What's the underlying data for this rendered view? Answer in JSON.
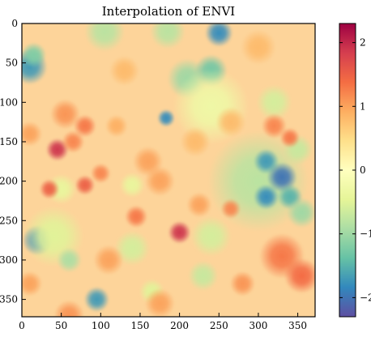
{
  "chart_data": {
    "type": "heatmap",
    "title": "Interpolation of ENVI",
    "xlabel": "",
    "ylabel": "",
    "xlim": [
      0,
      372
    ],
    "ylim": [
      372,
      0
    ],
    "x_ticks": [
      0,
      50,
      100,
      150,
      200,
      250,
      300,
      350
    ],
    "y_ticks": [
      0,
      50,
      100,
      150,
      200,
      250,
      300,
      350
    ],
    "colorbar": {
      "range": [
        -2.3,
        2.3
      ],
      "ticks": [
        -2,
        -1,
        0,
        1,
        2
      ],
      "colormap": "Spectral_r",
      "stops": [
        "#5e4fa2",
        "#3288bd",
        "#66c2a5",
        "#abdda4",
        "#e6f598",
        "#ffffbf",
        "#fee08b",
        "#fdae61",
        "#f46d43",
        "#d53e4f",
        "#9e0142"
      ]
    },
    "base_value": 0.45,
    "background_color": "#fdd49a",
    "blobs": [
      {
        "x": 10,
        "y": 55,
        "r": 14,
        "v": -1.7
      },
      {
        "x": 15,
        "y": 40,
        "r": 10,
        "v": -1.2
      },
      {
        "x": 105,
        "y": 10,
        "r": 16,
        "v": -0.8
      },
      {
        "x": 185,
        "y": 10,
        "r": 14,
        "v": -0.8
      },
      {
        "x": 250,
        "y": 12,
        "r": 11,
        "v": -1.8
      },
      {
        "x": 210,
        "y": 70,
        "r": 16,
        "v": -1.0
      },
      {
        "x": 240,
        "y": 60,
        "r": 13,
        "v": -1.3
      },
      {
        "x": 183,
        "y": 120,
        "r": 7,
        "v": -1.8
      },
      {
        "x": 240,
        "y": 105,
        "r": 30,
        "v": -0.3
      },
      {
        "x": 320,
        "y": 100,
        "r": 14,
        "v": -0.6
      },
      {
        "x": 300,
        "y": 200,
        "r": 40,
        "v": -0.8
      },
      {
        "x": 330,
        "y": 195,
        "r": 12,
        "v": -2.0
      },
      {
        "x": 310,
        "y": 220,
        "r": 10,
        "v": -1.8
      },
      {
        "x": 310,
        "y": 175,
        "r": 10,
        "v": -1.7
      },
      {
        "x": 340,
        "y": 220,
        "r": 10,
        "v": -1.5
      },
      {
        "x": 355,
        "y": 240,
        "r": 12,
        "v": -1.0
      },
      {
        "x": 350,
        "y": 160,
        "r": 12,
        "v": -0.7
      },
      {
        "x": 20,
        "y": 275,
        "r": 12,
        "v": -1.9
      },
      {
        "x": 40,
        "y": 270,
        "r": 24,
        "v": -0.5
      },
      {
        "x": 95,
        "y": 350,
        "r": 10,
        "v": -1.7
      },
      {
        "x": 140,
        "y": 285,
        "r": 14,
        "v": -0.6
      },
      {
        "x": 60,
        "y": 300,
        "r": 10,
        "v": -0.9
      },
      {
        "x": 240,
        "y": 270,
        "r": 16,
        "v": -0.6
      },
      {
        "x": 230,
        "y": 320,
        "r": 12,
        "v": -0.7
      },
      {
        "x": 165,
        "y": 340,
        "r": 10,
        "v": -0.5
      },
      {
        "x": 50,
        "y": 210,
        "r": 12,
        "v": -0.4
      },
      {
        "x": 140,
        "y": 205,
        "r": 10,
        "v": -0.4
      },
      {
        "x": 45,
        "y": 160,
        "r": 9,
        "v": 1.9
      },
      {
        "x": 65,
        "y": 150,
        "r": 9,
        "v": 1.2
      },
      {
        "x": 55,
        "y": 115,
        "r": 12,
        "v": 1.1
      },
      {
        "x": 80,
        "y": 130,
        "r": 9,
        "v": 1.3
      },
      {
        "x": 10,
        "y": 140,
        "r": 10,
        "v": 1.0
      },
      {
        "x": 35,
        "y": 210,
        "r": 8,
        "v": 1.5
      },
      {
        "x": 80,
        "y": 205,
        "r": 8,
        "v": 1.5
      },
      {
        "x": 100,
        "y": 190,
        "r": 8,
        "v": 1.2
      },
      {
        "x": 145,
        "y": 245,
        "r": 9,
        "v": 1.3
      },
      {
        "x": 200,
        "y": 265,
        "r": 9,
        "v": 1.9
      },
      {
        "x": 160,
        "y": 175,
        "r": 12,
        "v": 1.0
      },
      {
        "x": 175,
        "y": 200,
        "r": 12,
        "v": 1.0
      },
      {
        "x": 225,
        "y": 230,
        "r": 10,
        "v": 1.0
      },
      {
        "x": 265,
        "y": 235,
        "r": 8,
        "v": 1.2
      },
      {
        "x": 320,
        "y": 130,
        "r": 10,
        "v": 1.2
      },
      {
        "x": 340,
        "y": 145,
        "r": 8,
        "v": 1.3
      },
      {
        "x": 330,
        "y": 295,
        "r": 18,
        "v": 1.3
      },
      {
        "x": 355,
        "y": 320,
        "r": 14,
        "v": 1.4
      },
      {
        "x": 280,
        "y": 330,
        "r": 10,
        "v": 1.1
      },
      {
        "x": 175,
        "y": 355,
        "r": 12,
        "v": 1.0
      },
      {
        "x": 110,
        "y": 300,
        "r": 12,
        "v": 1.0
      },
      {
        "x": 10,
        "y": 330,
        "r": 10,
        "v": 1.0
      },
      {
        "x": 300,
        "y": 30,
        "r": 14,
        "v": 0.8
      },
      {
        "x": 130,
        "y": 60,
        "r": 12,
        "v": 0.8
      },
      {
        "x": 265,
        "y": 125,
        "r": 12,
        "v": 0.8
      },
      {
        "x": 120,
        "y": 130,
        "r": 9,
        "v": 0.9
      },
      {
        "x": 60,
        "y": 370,
        "r": 12,
        "v": 1.1
      },
      {
        "x": 220,
        "y": 150,
        "r": 12,
        "v": 0.8
      }
    ]
  }
}
